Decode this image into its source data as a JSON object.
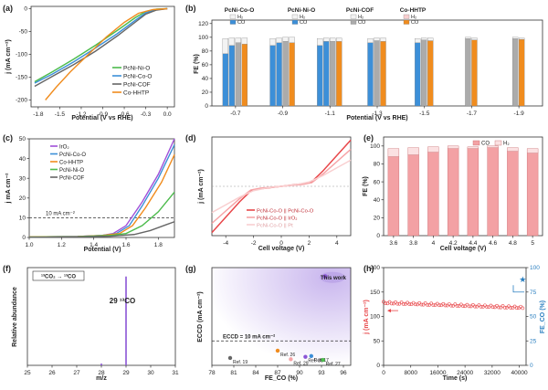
{
  "colors": {
    "green": "#4cbb4c",
    "blue": "#3c8fd8",
    "gray": "#666666",
    "orange": "#f08c1e",
    "purple": "#a050d8",
    "red": "#e8474a",
    "pink": "#f6a3a6",
    "lightpink": "#f9cfd0",
    "h2bar": "#f3f3f3",
    "cobar": "#ababab",
    "teal": "#2a7fc0",
    "violet": "#8b55d6"
  },
  "chart_data": [
    {
      "panel": "(a)",
      "type": "line",
      "xlabel": "Potential (V vs RHE)",
      "ylabel": "j (mA cm⁻²)",
      "xlim": [
        -1.9,
        0.1
      ],
      "ylim": [
        -215,
        5
      ],
      "xticks": [
        "-1.8",
        "-1.5",
        "-1.2",
        "-0.9",
        "-0.6",
        "-0.3",
        "0.0"
      ],
      "xtick_values": [
        -1.8,
        -1.5,
        -1.2,
        -0.9,
        -0.6,
        -0.3,
        0.0
      ],
      "yticks": [
        "0",
        "-50",
        "-100",
        "-150",
        "-200"
      ],
      "ytick_values": [
        0,
        -50,
        -100,
        -150,
        -200
      ],
      "legend": [
        "PcNi-Ni-O",
        "PcNi-Co-O",
        "PcNi-COF",
        "Co-HHTP"
      ],
      "series": [
        {
          "name": "PcNi-Ni-O",
          "color": "green",
          "x": [
            -1.85,
            -1.6,
            -1.3,
            -1.0,
            -0.7,
            -0.45,
            -0.3,
            -0.15,
            0.0
          ],
          "y": [
            -160,
            -138,
            -110,
            -80,
            -48,
            -20,
            -6,
            -1,
            0
          ]
        },
        {
          "name": "PcNi-Co-O",
          "color": "blue",
          "x": [
            -1.85,
            -1.6,
            -1.3,
            -1.0,
            -0.7,
            -0.45,
            -0.3,
            -0.15,
            0.0
          ],
          "y": [
            -163,
            -143,
            -116,
            -86,
            -55,
            -26,
            -9,
            -2,
            0
          ]
        },
        {
          "name": "PcNi-COF",
          "color": "gray",
          "x": [
            -1.85,
            -1.6,
            -1.3,
            -1.0,
            -0.7,
            -0.45,
            -0.3,
            -0.15,
            0.0
          ],
          "y": [
            -170,
            -148,
            -122,
            -93,
            -60,
            -30,
            -12,
            -3,
            0
          ]
        },
        {
          "name": "Co-HHTP",
          "color": "orange",
          "x": [
            -1.7,
            -1.55,
            -1.35,
            -1.1,
            -0.85,
            -0.6,
            -0.4,
            -0.2,
            0.0
          ],
          "y": [
            -200,
            -172,
            -138,
            -100,
            -62,
            -30,
            -10,
            -2,
            0
          ]
        }
      ]
    },
    {
      "panel": "(b)",
      "type": "bar",
      "xlabel": "Potential (V vs RHE)",
      "ylabel": "FE (%)",
      "ylim": [
        0,
        125
      ],
      "yticks": [
        "0",
        "20",
        "40",
        "60",
        "80",
        "100",
        "120"
      ],
      "ytick_values": [
        0,
        20,
        40,
        60,
        80,
        100,
        120
      ],
      "categories": [
        "-0.7",
        "-0.9",
        "-1.1",
        "-1.3",
        "-1.5",
        "-1.7",
        "-1.9"
      ],
      "group_labels": [
        "PcNi-Co-O",
        "PcNi-Ni-O",
        "PcNi-COF",
        "Co-HHTP"
      ],
      "legend_items": [
        "H₂",
        "CO",
        "H₂",
        "CO",
        "H₂",
        "CO",
        "H₂",
        "CO"
      ],
      "series": [
        {
          "name": "PcNi-Co-O",
          "co": [
            76,
            88,
            88,
            92,
            92,
            0,
            0
          ],
          "h2": [
            22,
            10,
            10,
            6,
            6,
            0,
            0
          ]
        },
        {
          "name": "PcNi-Ni-O",
          "co": [
            88,
            92,
            94,
            0,
            0,
            0,
            0
          ],
          "h2": [
            11,
            7,
            5,
            0,
            0,
            0,
            0
          ]
        },
        {
          "name": "PcNi-COF",
          "co": [
            92,
            94,
            94,
            95,
            96,
            98,
            98
          ],
          "h2": [
            7,
            6,
            5,
            4,
            3,
            2,
            2
          ]
        },
        {
          "name": "Co-HHTP",
          "co": [
            90,
            92,
            94,
            94,
            95,
            96,
            97
          ],
          "h2": [
            9,
            8,
            5,
            5,
            4,
            3,
            2
          ]
        }
      ]
    },
    {
      "panel": "(c)",
      "type": "line",
      "xlabel": "Potential (V)",
      "ylabel": "j mA cm⁻²",
      "xlim": [
        1.0,
        1.9
      ],
      "ylim": [
        0,
        50
      ],
      "xticks": [
        "1.0",
        "1.2",
        "1.4",
        "1.6",
        "1.8"
      ],
      "xtick_values": [
        1.0,
        1.2,
        1.4,
        1.6,
        1.8
      ],
      "yticks": [
        "0",
        "10",
        "20",
        "30",
        "40",
        "50"
      ],
      "ytick_values": [
        0,
        10,
        20,
        30,
        40,
        50
      ],
      "annotation": "10 mA cm⁻²",
      "legend": [
        "IrO₂",
        "PcNi-Co-O",
        "Co-HHTP",
        "PcNi-Ni-O",
        "PcNi-COF"
      ],
      "series": [
        {
          "name": "IrO₂",
          "color": "purple",
          "x": [
            1.0,
            1.3,
            1.45,
            1.52,
            1.6,
            1.7,
            1.8,
            1.9
          ],
          "y": [
            0.3,
            0.5,
            1,
            2,
            6,
            18,
            32,
            50
          ]
        },
        {
          "name": "PcNi-Co-O",
          "color": "blue",
          "x": [
            1.0,
            1.3,
            1.45,
            1.54,
            1.62,
            1.7,
            1.8,
            1.9
          ],
          "y": [
            0.3,
            0.5,
            1,
            2,
            6,
            16,
            30,
            47
          ]
        },
        {
          "name": "Co-HHTP",
          "color": "orange",
          "x": [
            1.0,
            1.3,
            1.45,
            1.56,
            1.64,
            1.72,
            1.82,
            1.9
          ],
          "y": [
            0.3,
            0.5,
            1,
            2,
            6,
            15,
            28,
            42
          ]
        },
        {
          "name": "PcNi-Ni-O",
          "color": "green",
          "x": [
            1.0,
            1.3,
            1.5,
            1.6,
            1.7,
            1.8,
            1.9
          ],
          "y": [
            0.2,
            0.4,
            1,
            2,
            6,
            13,
            23
          ]
        },
        {
          "name": "PcNi-COF",
          "color": "gray",
          "x": [
            1.0,
            1.3,
            1.5,
            1.65,
            1.75,
            1.85,
            1.9
          ],
          "y": [
            0.1,
            0.3,
            0.6,
            1.5,
            3.5,
            6.5,
            8
          ]
        }
      ]
    },
    {
      "panel": "(d)",
      "type": "line",
      "xlabel": "Cell voltage (V)",
      "ylabel": "j (mA cm⁻²)",
      "xlim": [
        -5,
        5
      ],
      "ylim": [
        -160,
        160
      ],
      "xticks": [
        "-4",
        "-2",
        "0",
        "2",
        "4"
      ],
      "xtick_values": [
        -4,
        -2,
        0,
        2,
        4
      ],
      "legend": [
        "PcNi-Co-O || PcNi-Co-O",
        "PcNi-Co-O || IrO₂",
        "PcNi-Co-O || Pt"
      ],
      "series": [
        {
          "name": "PcNi-Co-O || PcNi-Co-O",
          "color": "red",
          "x": [
            -5,
            -4,
            -3,
            -2.2,
            -1.5,
            0,
            1.5,
            2.2,
            3,
            4,
            5
          ],
          "y": [
            -150,
            -100,
            -50,
            -15,
            -8,
            0,
            8,
            15,
            50,
            100,
            150
          ]
        },
        {
          "name": "PcNi-Co-O || IrO₂",
          "color": "pink",
          "x": [
            -5,
            -4,
            -3,
            -2.2,
            -1.5,
            0,
            1.5,
            2.2,
            3,
            4,
            5
          ],
          "y": [
            -120,
            -80,
            -40,
            -12,
            -6,
            0,
            6,
            12,
            40,
            80,
            120
          ]
        },
        {
          "name": "PcNi-Co-O || Pt",
          "color": "lightpink",
          "x": [
            -5,
            -4,
            -3,
            -2,
            -1,
            0,
            1,
            2,
            3,
            4,
            5
          ],
          "y": [
            -85,
            -60,
            -35,
            -14,
            -5,
            0,
            5,
            14,
            35,
            60,
            85
          ]
        }
      ]
    },
    {
      "panel": "(e)",
      "type": "bar",
      "xlabel": "Cell voltage (V)",
      "ylabel": "FE (%)",
      "ylim": [
        0,
        110
      ],
      "yticks": [
        "0",
        "20",
        "40",
        "60",
        "80",
        "100"
      ],
      "ytick_values": [
        0,
        20,
        40,
        60,
        80,
        100
      ],
      "categories": [
        "3.6",
        "3.8",
        "4",
        "4.2",
        "4.4",
        "4.6",
        "4.8",
        "5"
      ],
      "legend": [
        "CO",
        "H₂"
      ],
      "series": [
        {
          "name": "CO",
          "values": [
            88,
            90,
            93,
            97,
            97,
            98,
            94,
            92
          ]
        },
        {
          "name": "H₂",
          "values": [
            9,
            8,
            6,
            3,
            2,
            2,
            4,
            5
          ]
        }
      ]
    },
    {
      "panel": "(f)",
      "type": "bar",
      "xlabel": "m/z",
      "ylabel": "Relative abundance",
      "xlim": [
        25,
        31
      ],
      "xticks": [
        "25",
        "26",
        "27",
        "28",
        "29",
        "30",
        "31"
      ],
      "xtick_values": [
        25,
        26,
        27,
        28,
        29,
        30,
        31
      ],
      "inset_label": "¹³CO₂ → ¹³CO",
      "peak_label": "29 ¹³CO",
      "peaks": [
        {
          "x": 28,
          "value": 0.02
        },
        {
          "x": 29,
          "value": 1.0
        }
      ]
    },
    {
      "panel": "(g)",
      "type": "scatter",
      "xlabel": "FE_CO (%)",
      "ylabel": "ECCD (mA cm⁻²)",
      "xlim": [
        78,
        97
      ],
      "ylim": [
        0,
        40
      ],
      "xticks": [
        "78",
        "81",
        "84",
        "87",
        "90",
        "93",
        "96"
      ],
      "xtick_values": [
        78,
        81,
        84,
        87,
        90,
        93,
        96
      ],
      "threshold_label": "ECCD = 10 mA cm⁻²",
      "threshold": 10,
      "points": [
        {
          "label": "This work",
          "x": 94.5,
          "y": 36,
          "color": "violet"
        },
        {
          "label": "Ref. 19",
          "x": 80.5,
          "y": 3,
          "color": "gray"
        },
        {
          "label": "Ref. 26",
          "x": 87,
          "y": 6,
          "color": "orange"
        },
        {
          "label": "Ref. 29",
          "x": 88.8,
          "y": 2.5,
          "color": "pink"
        },
        {
          "label": "Ref. 30",
          "x": 90.8,
          "y": 3.5,
          "color": "violet"
        },
        {
          "label": "Ref. 17",
          "x": 91.6,
          "y": 3.8,
          "color": "blue"
        },
        {
          "label": "Ref. 27",
          "x": 93.2,
          "y": 2.2,
          "color": "green"
        }
      ]
    },
    {
      "panel": "(h)",
      "type": "scatter",
      "xlabel": "Time (s)",
      "ylabel": "j (mA cm⁻²)",
      "ylabel2": "FE_CO (%)",
      "xlim": [
        0,
        42000
      ],
      "ylim": [
        0,
        200
      ],
      "ylim2": [
        0,
        100
      ],
      "xticks": [
        "0",
        "8000",
        "16000",
        "24000",
        "32000",
        "40000"
      ],
      "xtick_values": [
        0,
        8000,
        16000,
        24000,
        32000,
        40000
      ],
      "yticks": [
        "0",
        "50",
        "100",
        "150",
        "200"
      ],
      "ytick_values": [
        0,
        50,
        100,
        150,
        200
      ],
      "yticks2": [
        "0",
        "25",
        "50",
        "75",
        "100"
      ],
      "ytick2_values": [
        0,
        25,
        50,
        75,
        100
      ],
      "current_density": {
        "start": 128,
        "end": 118
      },
      "fe_point": {
        "x": 41000,
        "y": 88
      }
    }
  ]
}
